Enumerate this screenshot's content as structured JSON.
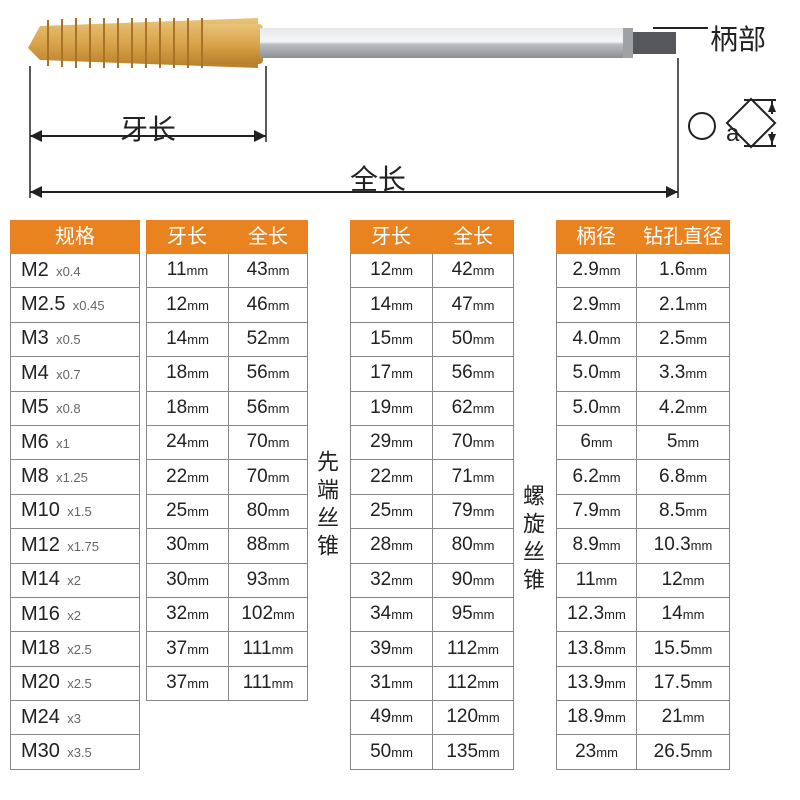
{
  "diagram": {
    "handle_label": "柄部",
    "thread_len_label": "牙长",
    "full_len_label": "全长",
    "a_label": "a",
    "colors": {
      "thread": "#d9a44a",
      "shank": "#c9ccd0",
      "shank_dark": "#7e8085",
      "arrow": "#222222"
    }
  },
  "tables": {
    "spec_header": "规格",
    "col2_headers": [
      "牙长",
      "全长"
    ],
    "col3_headers": [
      "牙长",
      "全长"
    ],
    "col4_headers": [
      "柄径",
      "钻孔直径"
    ],
    "v_label_1": "先端丝锥",
    "v_label_2": "螺旋丝锥",
    "unit": "mm",
    "specs": [
      {
        "m": "M2",
        "p": "x0.4"
      },
      {
        "m": "M2.5",
        "p": "x0.45"
      },
      {
        "m": "M3",
        "p": "x0.5"
      },
      {
        "m": "M4",
        "p": "x0.7"
      },
      {
        "m": "M5",
        "p": "x0.8"
      },
      {
        "m": "M6",
        "p": "x1"
      },
      {
        "m": "M8",
        "p": "x1.25"
      },
      {
        "m": "M10",
        "p": "x1.5"
      },
      {
        "m": "M12",
        "p": "x1.75"
      },
      {
        "m": "M14",
        "p": "x2"
      },
      {
        "m": "M16",
        "p": "x2"
      },
      {
        "m": "M18",
        "p": "x2.5"
      },
      {
        "m": "M20",
        "p": "x2.5"
      },
      {
        "m": "M24",
        "p": "x3"
      },
      {
        "m": "M30",
        "p": "x3.5"
      }
    ],
    "col2": [
      [
        "11",
        "43"
      ],
      [
        "12",
        "46"
      ],
      [
        "14",
        "52"
      ],
      [
        "18",
        "56"
      ],
      [
        "18",
        "56"
      ],
      [
        "24",
        "70"
      ],
      [
        "22",
        "70"
      ],
      [
        "25",
        "80"
      ],
      [
        "30",
        "88"
      ],
      [
        "30",
        "93"
      ],
      [
        "32",
        "102"
      ],
      [
        "37",
        "111"
      ],
      [
        "37",
        "111"
      ]
    ],
    "col3": [
      [
        "12",
        "42"
      ],
      [
        "14",
        "47"
      ],
      [
        "15",
        "50"
      ],
      [
        "17",
        "56"
      ],
      [
        "19",
        "62"
      ],
      [
        "29",
        "70"
      ],
      [
        "22",
        "71"
      ],
      [
        "25",
        "79"
      ],
      [
        "28",
        "80"
      ],
      [
        "32",
        "90"
      ],
      [
        "34",
        "95"
      ],
      [
        "39",
        "112"
      ],
      [
        "31",
        "112"
      ],
      [
        "49",
        "120"
      ],
      [
        "50",
        "135"
      ]
    ],
    "col4": [
      [
        "2.9",
        "1.6"
      ],
      [
        "2.9",
        "2.1"
      ],
      [
        "4.0",
        "2.5"
      ],
      [
        "5.0",
        "3.3"
      ],
      [
        "5.0",
        "4.2"
      ],
      [
        "6",
        "5"
      ],
      [
        "6.2",
        "6.8"
      ],
      [
        "7.9",
        "8.5"
      ],
      [
        "8.9",
        "10.3"
      ],
      [
        "11",
        "12"
      ],
      [
        "12.3",
        "14"
      ],
      [
        "13.8",
        "15.5"
      ],
      [
        "13.9",
        "17.5"
      ],
      [
        "18.9",
        "21"
      ],
      [
        "23",
        "26.5"
      ]
    ]
  },
  "style": {
    "header_bg": "#e8831f",
    "header_fg": "#ffffff",
    "border": "#888888",
    "text": "#222222",
    "subtext": "#666666"
  }
}
